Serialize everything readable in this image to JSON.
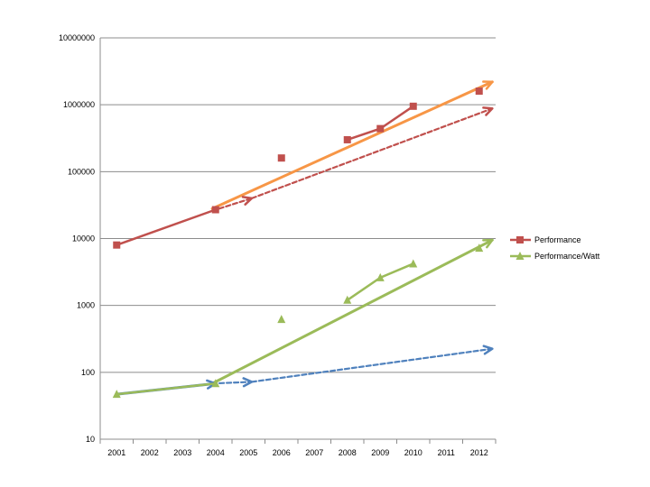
{
  "chart_data": {
    "type": "line",
    "x_categories": [
      "2001",
      "2002",
      "2003",
      "2004",
      "2005",
      "2006",
      "2007",
      "2008",
      "2009",
      "2010",
      "2011",
      "2012"
    ],
    "y_scale": "log",
    "ylim": [
      10,
      10000000
    ],
    "y_ticks": [
      "10",
      "100",
      "1000",
      "10000",
      "100000",
      "1000000",
      "10000000"
    ],
    "grid": "horizontal",
    "legend_position": "right",
    "series": [
      {
        "name": "Performance",
        "color": "#c0504d",
        "marker": "square",
        "connected_points": [
          {
            "x": 2001,
            "y": 8000
          },
          {
            "x": 2004,
            "y": 27000
          }
        ],
        "connected_points_2": [
          {
            "x": 2008,
            "y": 300000
          },
          {
            "x": 2009,
            "y": 440000
          },
          {
            "x": 2010,
            "y": 950000
          }
        ],
        "isolated_points": [
          {
            "x": 2006,
            "y": 160000
          },
          {
            "x": 2012,
            "y": 1600000
          }
        ]
      },
      {
        "name": "Performance/Watt",
        "color": "#9bbb59",
        "marker": "triangle",
        "connected_points": [
          {
            "x": 2001,
            "y": 47
          },
          {
            "x": 2004,
            "y": 68
          }
        ],
        "connected_points_2": [
          {
            "x": 2008,
            "y": 1200
          },
          {
            "x": 2009,
            "y": 2600
          },
          {
            "x": 2010,
            "y": 4200
          }
        ],
        "isolated_points": [
          {
            "x": 2006,
            "y": 620
          },
          {
            "x": 2012,
            "y": 7200
          }
        ]
      }
    ],
    "trend_arrows": [
      {
        "color": "#f79646",
        "style": "solid",
        "from": {
          "x": 2003.9,
          "y": 28000
        },
        "to": {
          "x": 2012.4,
          "y": 2200000
        }
      },
      {
        "color": "#c0504d",
        "style": "dashed",
        "from": {
          "x": 2003.9,
          "y": 26000
        },
        "to": {
          "x": 2005.1,
          "y": 40000
        }
      },
      {
        "color": "#c0504d",
        "style": "dashed",
        "from": {
          "x": 2005.1,
          "y": 40000
        },
        "to": {
          "x": 2012.4,
          "y": 880000
        }
      },
      {
        "color": "#9bbb59",
        "style": "solid",
        "from": {
          "x": 2003.9,
          "y": 68
        },
        "to": {
          "x": 2012.4,
          "y": 9500
        }
      },
      {
        "color": "#4f81bd",
        "style": "solid",
        "from": {
          "x": 2001,
          "y": 47
        },
        "to": {
          "x": 2004,
          "y": 68
        }
      },
      {
        "color": "#4f81bd",
        "style": "dashed",
        "from": {
          "x": 2003.9,
          "y": 68
        },
        "to": {
          "x": 2005.1,
          "y": 72
        }
      },
      {
        "color": "#4f81bd",
        "style": "dashed",
        "from": {
          "x": 2005.1,
          "y": 72
        },
        "to": {
          "x": 2012.4,
          "y": 225
        }
      }
    ]
  }
}
